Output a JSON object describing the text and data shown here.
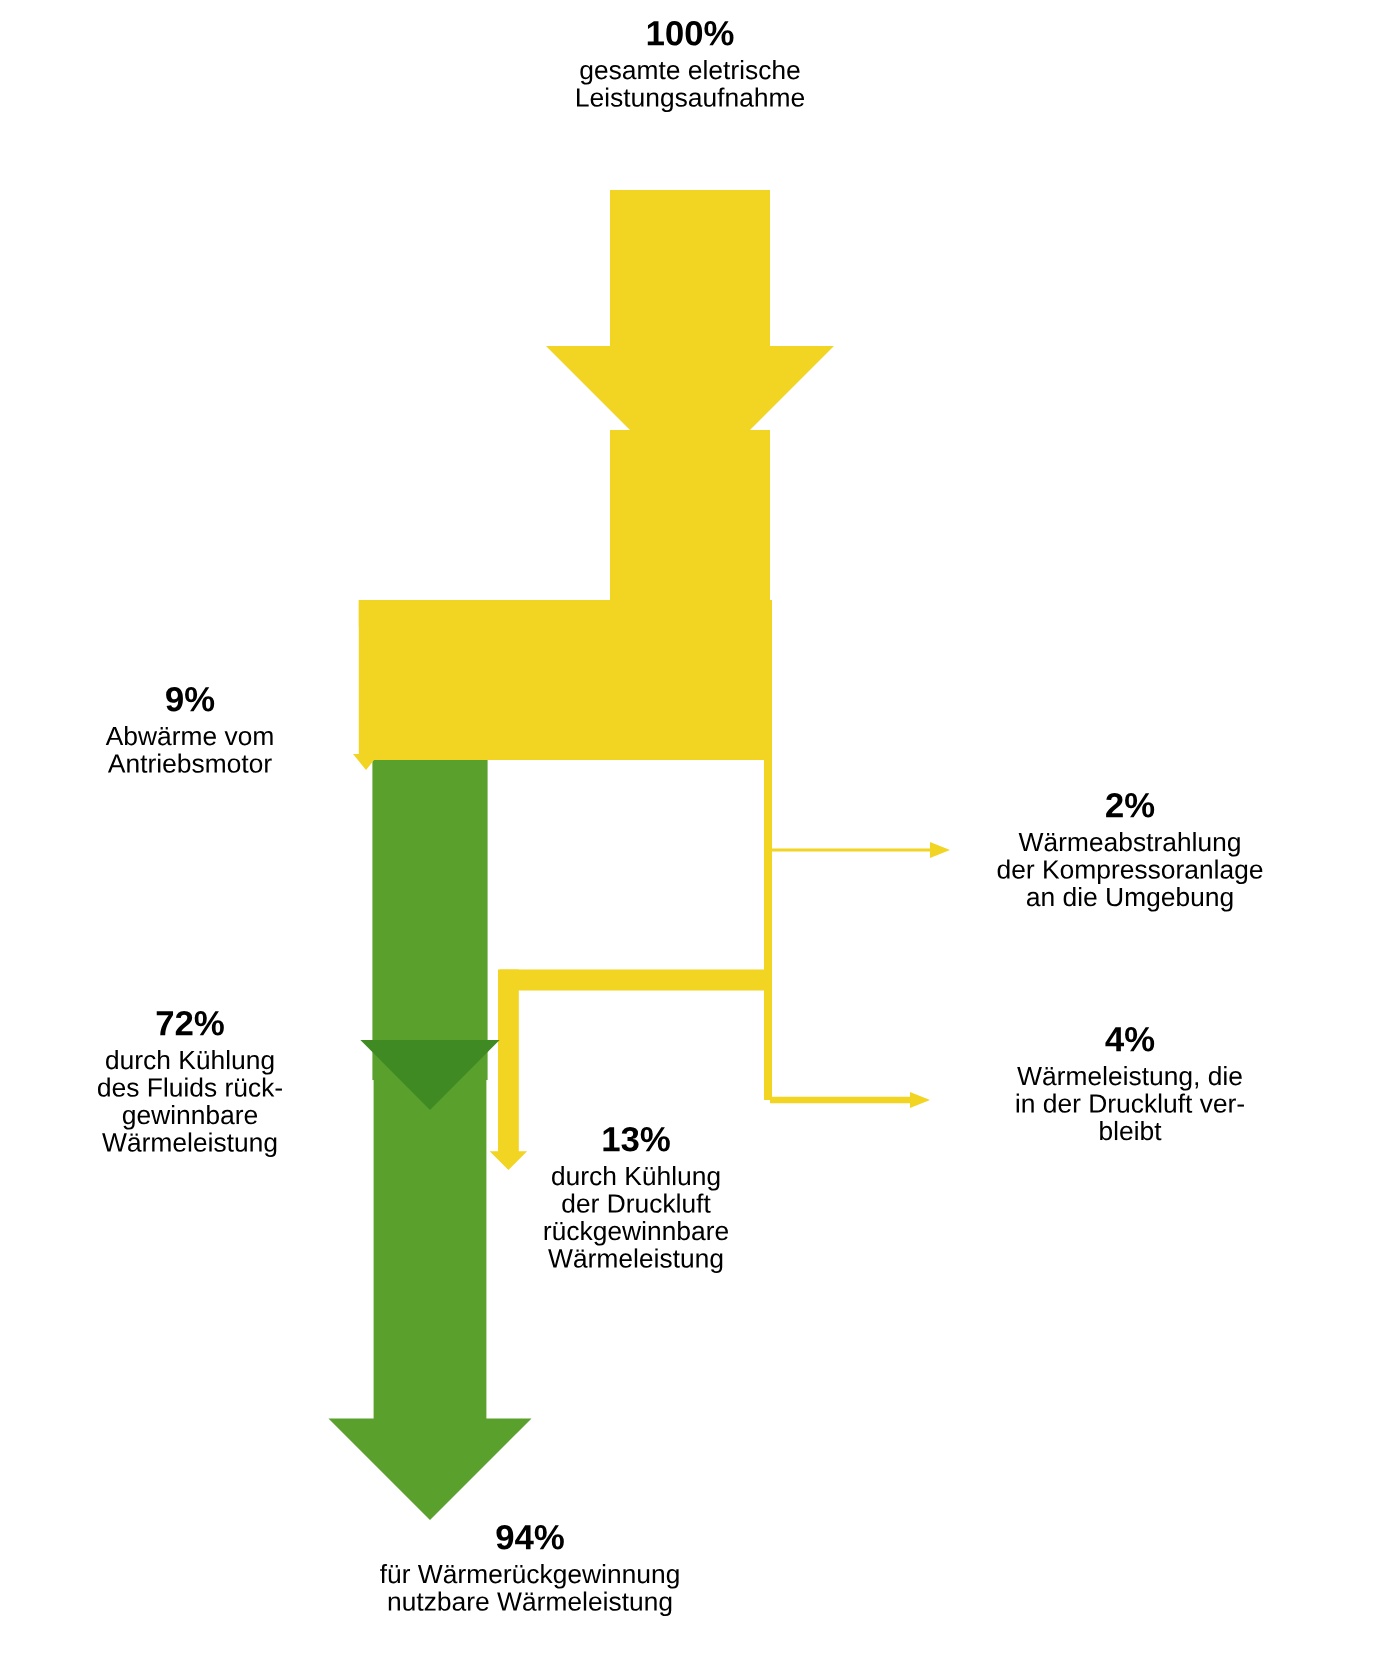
{
  "chart_data": {
    "type": "other",
    "categories": [
      "gesamte eletrische\nLeistungsaufnahme",
      "Abwärme vom\nAntriebsmotor",
      "Wärmeabstrahlung\nder Kompressoranlage\nan die Umgebung",
      "durch Kühlung\ndes Fluids rück-\ngewinnbare\nWärmeleistung",
      "Wärmeleistung, die\nin der Druckluft ver-\nbleibt",
      "durch Kühlung\nder Druckluft\nrückgewinnbare\nWärmeleistung",
      "für Wärmerückgewinnung\nnutzbare Wärmeleistung"
    ],
    "values": [
      100,
      9,
      2,
      72,
      4,
      13,
      94
    ],
    "value_labels": [
      "100%",
      "9%",
      "2%",
      "72%",
      "4%",
      "13%",
      "94%"
    ],
    "colors": [
      "#f2d422",
      "#f2d422",
      "#f2d422",
      "#5aa02c",
      "#f2d422",
      "#f2d422",
      "#5aa02c"
    ]
  }
}
